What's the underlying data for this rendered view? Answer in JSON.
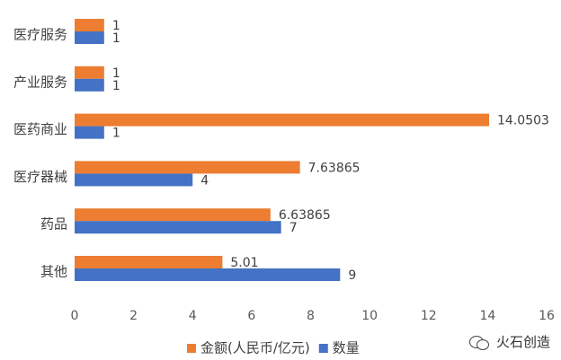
{
  "chart_data": {
    "type": "bar",
    "orientation": "horizontal",
    "categories": [
      "医疗服务",
      "产业服务",
      "医药商业",
      "医疗器械",
      "药品",
      "其他"
    ],
    "series": [
      {
        "name": "金额(人民币/亿元)",
        "color": "#ED7D31",
        "values": [
          1,
          1,
          14.0503,
          7.63865,
          6.63865,
          5.01
        ]
      },
      {
        "name": "数量",
        "color": "#4472C4",
        "values": [
          1,
          1,
          1,
          4,
          7,
          9
        ]
      }
    ],
    "data_labels": [
      [
        "1",
        "1",
        "14.0503",
        "7.63865",
        "6.63865",
        "5.01"
      ],
      [
        "1",
        "1",
        "1",
        "4",
        "7",
        "9"
      ]
    ],
    "xlim": [
      0,
      16
    ],
    "xticks": [
      0,
      2,
      4,
      6,
      8,
      10,
      12,
      14,
      16
    ],
    "grid": false,
    "legend_position": "bottom"
  },
  "watermark": {
    "text": "火石创造",
    "icon": "wechat-icon"
  }
}
